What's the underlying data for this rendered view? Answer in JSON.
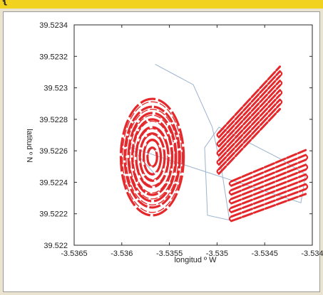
{
  "header": {
    "partial_text": "{ "
  },
  "chart_data": {
    "type": "scatter",
    "title": "",
    "xlabel": "longitud º W",
    "ylabel": "latitud º N",
    "xlim": [
      -3.5365,
      -3.534
    ],
    "ylim": [
      39.522,
      39.5234
    ],
    "grid": false,
    "legend": "none",
    "x_ticks": [
      -3.5365,
      -3.536,
      -3.5355,
      -3.535,
      -3.5345,
      -3.534
    ],
    "x_tick_labels": [
      "-3.5365",
      "-3.536",
      "-3.5355",
      "-3.535",
      "-3.5345",
      "-3.534"
    ],
    "y_ticks": [
      39.522,
      39.5222,
      39.5224,
      39.5226,
      39.5228,
      39.523,
      39.5232,
      39.5234
    ],
    "y_tick_labels": [
      "39.522",
      "39.5222",
      "39.5224",
      "39.5226",
      "39.5228",
      "39.523",
      "39.5232",
      "39.5234"
    ],
    "series": [
      {
        "kind": "track",
        "color": "#e4282b",
        "regions": [
          {
            "shape": "concentric-ellipses",
            "center": [
              -3.53568,
              39.52256
            ],
            "radii_x": [
              0.00033,
              0.00029,
              0.00025,
              0.00021,
              0.00017,
              0.00013,
              9e-05,
              5e-05
            ],
            "radii_y": [
              0.00037,
              0.00032,
              0.00028,
              0.00024,
              0.00019,
              0.00015,
              0.00011,
              6e-05
            ]
          },
          {
            "shape": "parallel-strips",
            "corners": [
              [
                -3.53498,
                39.52273
              ],
              [
                -3.53434,
                39.52315
              ],
              [
                -3.53434,
                39.52285
              ],
              [
                -3.53498,
                39.52244
              ]
            ],
            "lines": 10
          },
          {
            "shape": "parallel-strips",
            "corners": [
              [
                -3.53485,
                39.52242
              ],
              [
                -3.53407,
                39.52262
              ],
              [
                -3.53407,
                39.52231
              ],
              [
                -3.53485,
                39.52214
              ]
            ],
            "lines": 10
          }
        ]
      },
      {
        "kind": "connector",
        "color": "#9cb4cf",
        "points": [
          [
            -3.53565,
            39.52315
          ],
          [
            -3.53525,
            39.52302
          ],
          [
            -3.53505,
            39.52275
          ],
          [
            -3.53495,
            39.52247
          ],
          [
            -3.53487,
            39.52216
          ],
          [
            -3.5351,
            39.52219
          ],
          [
            -3.53513,
            39.52262
          ],
          [
            -3.53498,
            39.52275
          ],
          [
            -3.53434,
            39.52255
          ],
          [
            -3.53407,
            39.52245
          ],
          [
            -3.53412,
            39.52227
          ],
          [
            -3.5359,
            39.52262
          ],
          [
            -3.53565,
            39.52245
          ]
        ]
      }
    ]
  }
}
